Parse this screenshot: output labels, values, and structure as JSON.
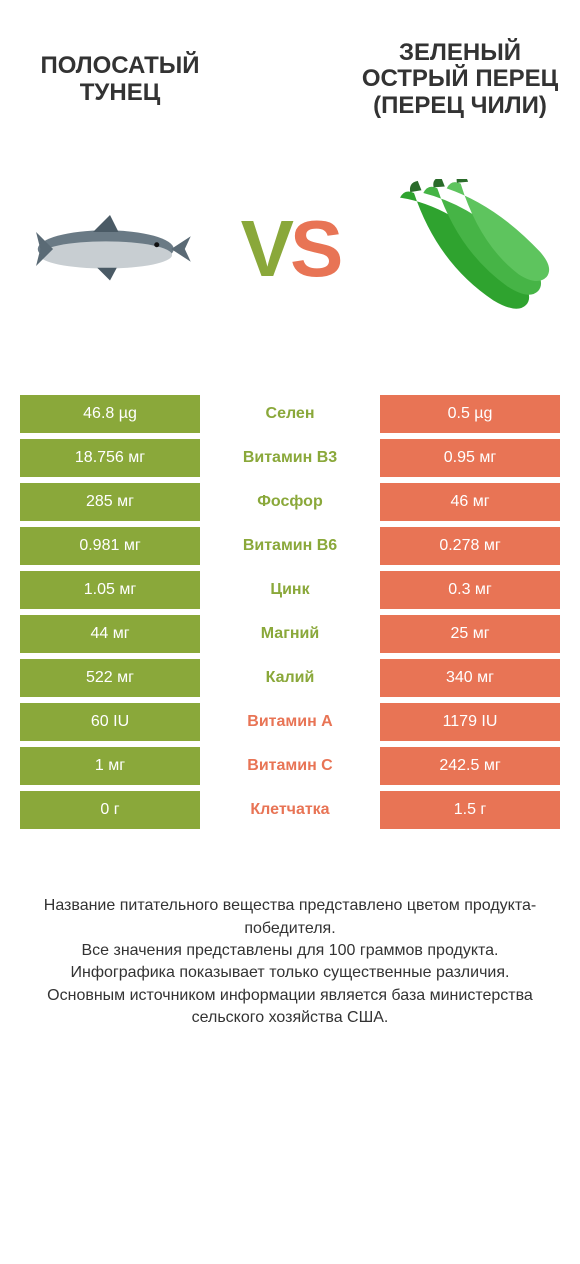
{
  "header": {
    "left_title": "ПОЛОСАТЫЙ ТУНЕЦ",
    "right_title": "ЗЕЛЕНЫЙ ОСТРЫЙ ПЕРЕЦ (ПЕРЕЦ ЧИЛИ)"
  },
  "colors": {
    "left": "#8aa83a",
    "right": "#e87455",
    "background": "#ffffff",
    "text": "#333333"
  },
  "vs": {
    "v": "V",
    "s": "S"
  },
  "rows": [
    {
      "left": "46.8 µg",
      "name": "Селен",
      "right": "0.5 µg",
      "winner": "left"
    },
    {
      "left": "18.756 мг",
      "name": "Витамин B3",
      "right": "0.95 мг",
      "winner": "left"
    },
    {
      "left": "285 мг",
      "name": "Фосфор",
      "right": "46 мг",
      "winner": "left"
    },
    {
      "left": "0.981 мг",
      "name": "Витамин B6",
      "right": "0.278 мг",
      "winner": "left"
    },
    {
      "left": "1.05 мг",
      "name": "Цинк",
      "right": "0.3 мг",
      "winner": "left"
    },
    {
      "left": "44 мг",
      "name": "Магний",
      "right": "25 мг",
      "winner": "left"
    },
    {
      "left": "522 мг",
      "name": "Калий",
      "right": "340 мг",
      "winner": "left"
    },
    {
      "left": "60 IU",
      "name": "Витамин A",
      "right": "1179 IU",
      "winner": "right"
    },
    {
      "left": "1 мг",
      "name": "Витамин C",
      "right": "242.5 мг",
      "winner": "right"
    },
    {
      "left": "0 г",
      "name": "Клетчатка",
      "right": "1.5 г",
      "winner": "right"
    }
  ],
  "footer": {
    "line1": "Название питательного вещества представлено цветом продукта-победителя.",
    "line2": "Все значения представлены для 100 граммов продукта.",
    "line3": "Инфографика показывает только существенные различия.",
    "line4": "Основным источником информации является база министерства сельского хозяйства США."
  },
  "typography": {
    "title_fontsize": 24,
    "cell_fontsize": 16,
    "footer_fontsize": 16,
    "vs_fontsize": 80
  }
}
